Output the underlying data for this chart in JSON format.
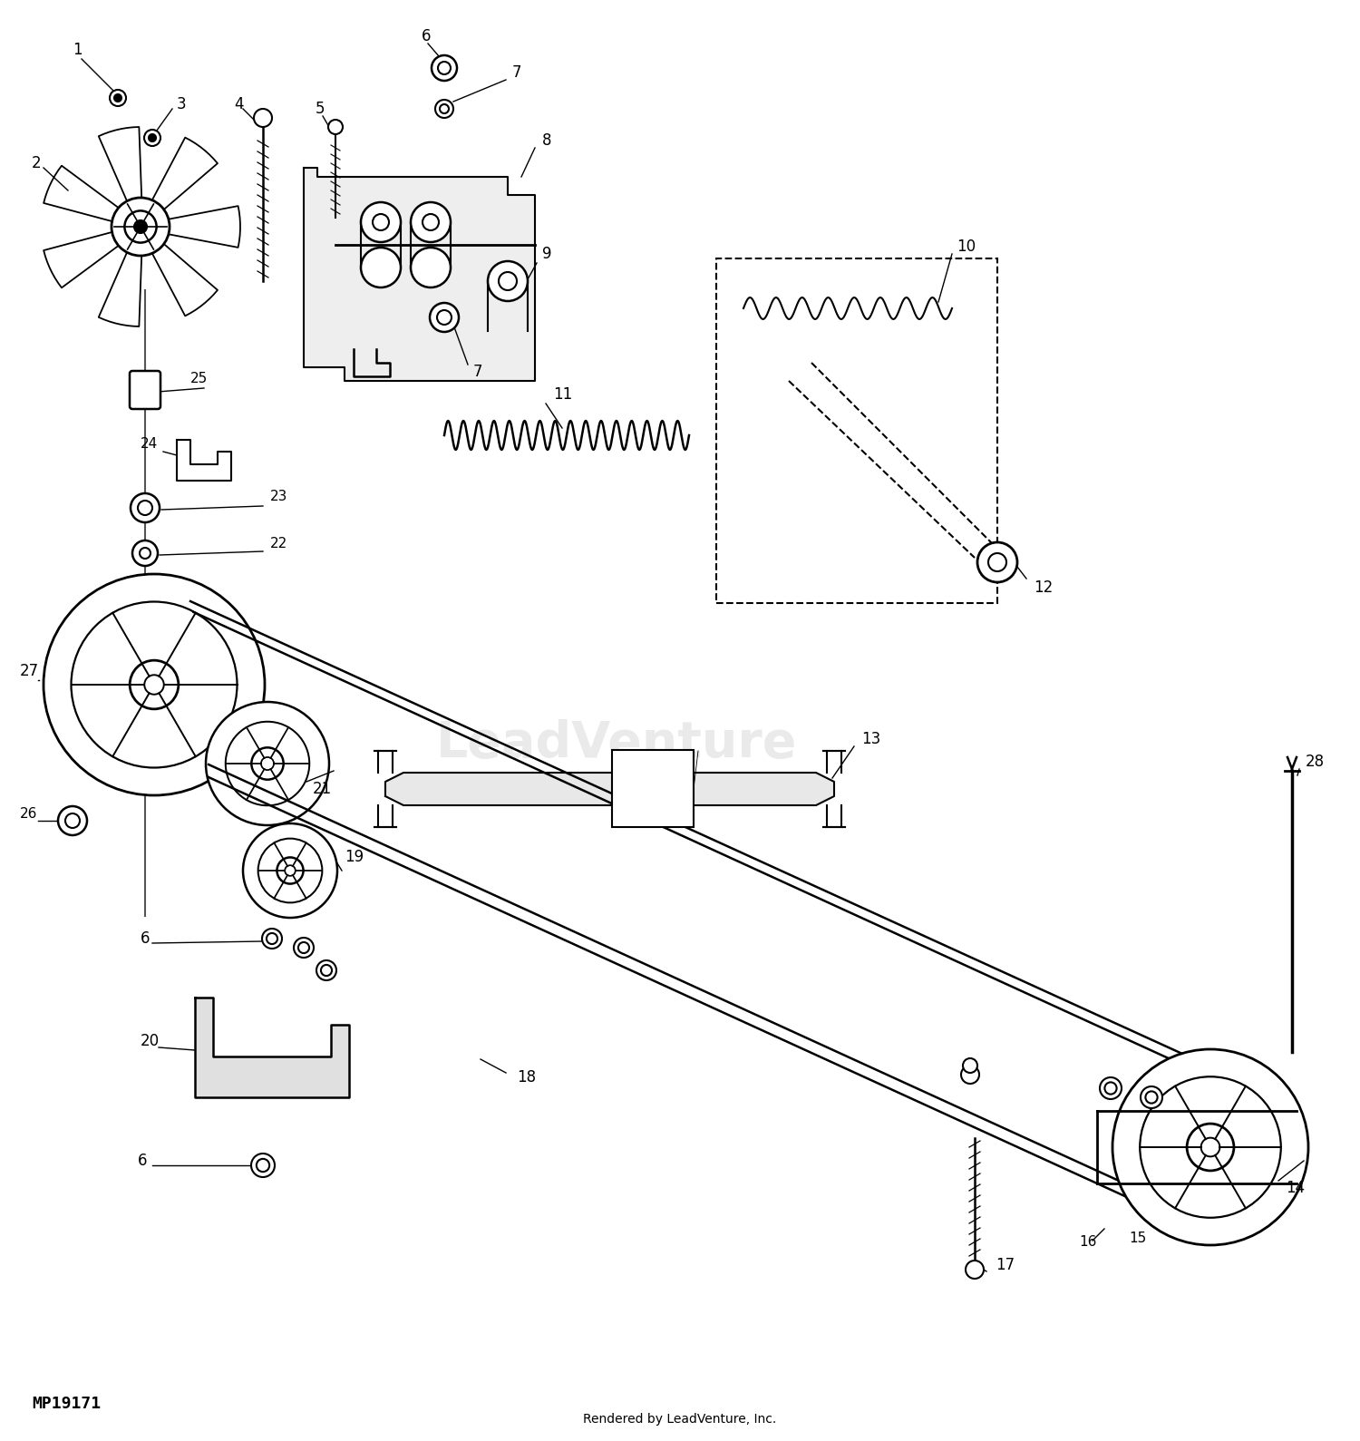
{
  "bg_color": "#ffffff",
  "fig_width": 15.0,
  "fig_height": 15.89,
  "mp_label": "MP19171",
  "credit": "Rendered by LeadVenture, Inc.",
  "line_color": "#000000"
}
